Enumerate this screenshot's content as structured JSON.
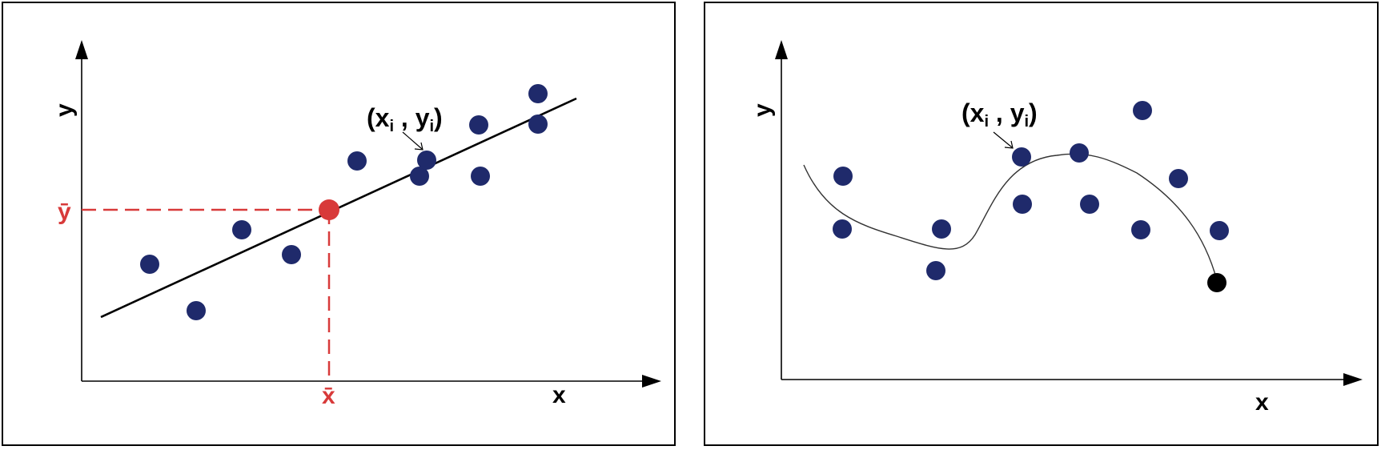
{
  "colors": {
    "point": "#1f2a6b",
    "mean": "#d83a3a",
    "end_point": "#000000",
    "line": "#000000"
  },
  "left_panel": {
    "x_axis_label": "x",
    "y_axis_label": "y",
    "annotation": "(x_i , y_i)",
    "mean_x_label": "x̄",
    "mean_y_label": "ȳ"
  },
  "right_panel": {
    "x_axis_label": "x",
    "y_axis_label": "y",
    "annotation": "(x_i , y_i)"
  }
}
